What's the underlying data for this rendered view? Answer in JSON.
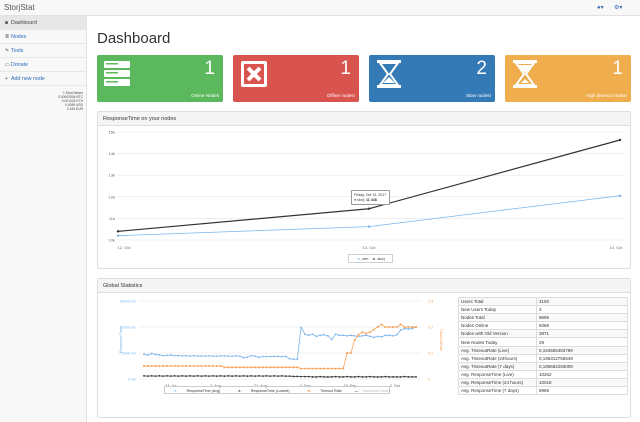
{
  "app": {
    "title": "StorjStat"
  },
  "sidebar": {
    "items": [
      {
        "label": "Dashboard",
        "icon": "dashboard-icon",
        "glyph": "◙"
      },
      {
        "label": "Nodes",
        "icon": "list-icon",
        "glyph": "≣"
      },
      {
        "label": "Tools",
        "icon": "wrench-icon",
        "glyph": "✎"
      },
      {
        "label": "Donate",
        "icon": "money-icon",
        "glyph": "▭"
      },
      {
        "label": "Add new node",
        "icon": "plus-icon",
        "glyph": "+"
      }
    ],
    "balances": [
      "1 Storj Newer",
      "0.00002544 BTC",
      "0.001024 ETH",
      "0.4059 USD",
      "0.344 EUR"
    ]
  },
  "main": {
    "title": "Dashboard",
    "tiles": [
      {
        "value": "1",
        "label": "Online Nodes",
        "color": "#5cb85c",
        "icon": "server-icon"
      },
      {
        "value": "1",
        "label": "Offline nodes!",
        "color": "#d9534f",
        "icon": "close-box-icon"
      },
      {
        "value": "2",
        "label": "Slow nodes!",
        "color": "#337ab7",
        "icon": "hourglass-icon"
      },
      {
        "value": "1",
        "label": "High timeout nodes!",
        "color": "#f0ad4e",
        "icon": "hourglass-icon"
      }
    ]
  },
  "response_panel": {
    "title": "ResponseTime on your nodes",
    "tooltip": {
      "date": "Friday, Oct 13, 2017",
      "series": "storj",
      "value": "11 448"
    }
  },
  "global_panel": {
    "title": "Global Statistics",
    "stats": [
      [
        "Users Total",
        "3150"
      ],
      [
        "New Users Today",
        "3"
      ],
      [
        "Nodes Total",
        "9695"
      ],
      [
        "Nodes Online",
        "5068"
      ],
      [
        "Nodes with Old Version",
        "3871"
      ],
      [
        "New Nodes Today",
        "29"
      ],
      [
        "Avg. TimeoutRate (Live)",
        "0,194555383799"
      ],
      [
        "Avg. TimeoutRate (24hours)",
        "0,195312756549"
      ],
      [
        "Avg. TimeoutRate (7 days)",
        "0,195682293009"
      ],
      [
        "Avg. ResponseTime (Live)",
        "10262"
      ],
      [
        "Avg. ResponseTime (24 hours)",
        "10018"
      ],
      [
        "Avg. ResponseTime (7 days)",
        "8969"
      ]
    ]
  },
  "chart_data": [
    {
      "type": "line",
      "title": "",
      "xlabel": "",
      "ylabel": "",
      "categories": [
        "12. Oct",
        "13. Oct",
        "14. Oct"
      ],
      "yticks": [
        "10k",
        "11k",
        "12k",
        "13k",
        "14k",
        "15k"
      ],
      "ylim": [
        10000,
        15000
      ],
      "legend": "bottom",
      "series": [
        {
          "name": "zen",
          "color": "#7cb5ec",
          "values": [
            10200,
            10620,
            12050
          ]
        },
        {
          "name": "storj",
          "color": "#333333",
          "values": [
            10400,
            11448,
            14630
          ]
        }
      ]
    },
    {
      "type": "line",
      "title": "",
      "xlabel": "",
      "ylabel": "ResponseTime",
      "y2label": "TimeoutRate",
      "xticks": [
        "24. Jul",
        "7. Aug",
        "21. Aug",
        "4. Sep",
        "18. Sep",
        "2. Oct"
      ],
      "yticks": [
        "0 ms",
        "5000 ms",
        "10000 ms",
        "15000 ms"
      ],
      "y2ticks": [
        "0",
        "0.1",
        "0.2",
        "0.3"
      ],
      "ylim": [
        0,
        15000
      ],
      "y2lim": [
        0,
        0.3
      ],
      "legend": "bottom",
      "series": [
        {
          "name": "ResponseTime (Avg)",
          "color": "#7cb5ec",
          "axis": "left",
          "values": [
            4800,
            4600,
            4900,
            4700,
            4650,
            4500,
            4550,
            4600,
            4500,
            4500,
            4450,
            4500,
            4400,
            4500,
            4400,
            4450,
            4400,
            4450,
            4400,
            4400,
            4450,
            4450,
            4400,
            4400,
            4450,
            4400,
            4100,
            4200,
            4500,
            4400,
            4150,
            4350,
            4300,
            4350,
            4350,
            4350,
            4300,
            4350,
            3900,
            3800,
            3800,
            9900,
            8600,
            8400,
            8600,
            8200,
            8400,
            8500,
            8300,
            7600,
            8600,
            8400,
            8400,
            8300,
            8400,
            8300,
            8200,
            8300,
            8400,
            8200,
            8000,
            8200,
            8100,
            8400,
            8400,
            8300,
            8500,
            9400,
            9700,
            9600,
            9700,
            10000
          ]
        },
        {
          "name": "ResponseTime (Lowest)",
          "color": "#333333",
          "axis": "left",
          "values": [
            600,
            550,
            600,
            550,
            600,
            550,
            600,
            550,
            600,
            550,
            600,
            550,
            600,
            550,
            600,
            550,
            600,
            550,
            600,
            550,
            600,
            550,
            600,
            550,
            600,
            550,
            600,
            550,
            600,
            550,
            600,
            550,
            600,
            550,
            600,
            550,
            600,
            550,
            550,
            500,
            500,
            450,
            450,
            450,
            400,
            400,
            450,
            400,
            400,
            400,
            450,
            400,
            400,
            450,
            400,
            400,
            450,
            400,
            400,
            450,
            400,
            400,
            400,
            450,
            400,
            400,
            400,
            400,
            450,
            400,
            400,
            400
          ]
        },
        {
          "name": "Timeout Rate",
          "color": "#f7a35c",
          "axis": "right",
          "values": [
            0.05,
            0.05,
            0.05,
            0.05,
            0.05,
            0.05,
            0.05,
            0.05,
            0.05,
            0.05,
            0.05,
            0.05,
            0.05,
            0.05,
            0.05,
            0.05,
            0.05,
            0.05,
            0.05,
            0.05,
            0.05,
            0.045,
            0.045,
            0.045,
            0.045,
            0.045,
            0.045,
            0.045,
            0.045,
            0.045,
            0.045,
            0.045,
            0.045,
            0.045,
            0.045,
            0.045,
            0.045,
            0.045,
            0.045,
            0.045,
            0.045,
            0.04,
            0.04,
            0.04,
            0.04,
            0.04,
            0.04,
            0.04,
            0.04,
            0.04,
            0.04,
            0.04,
            0.04,
            0.1,
            0.1,
            0.15,
            0.17,
            0.18,
            0.175,
            0.18,
            0.19,
            0.2,
            0.21,
            0.2,
            0.2,
            0.2,
            0.2,
            0.21,
            0.2,
            0.2,
            0.2,
            0.2
          ]
        },
        {
          "name": "Monitored Nodes",
          "color": "#bbbbbb",
          "axis": "none",
          "values": []
        }
      ]
    }
  ]
}
